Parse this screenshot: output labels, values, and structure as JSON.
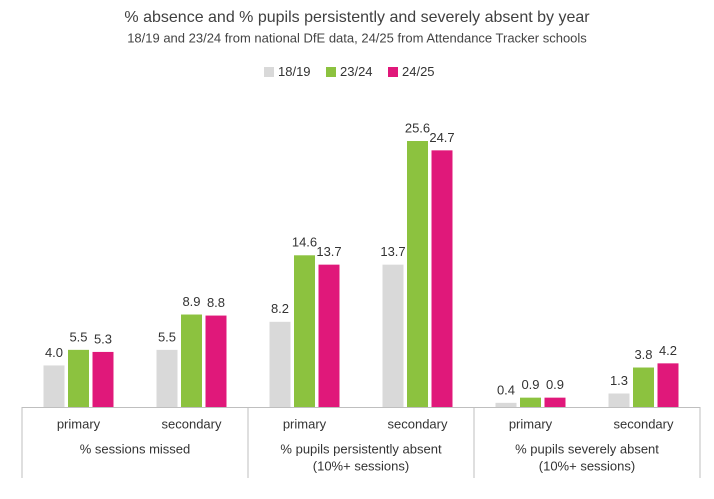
{
  "chart_data": {
    "type": "bar",
    "title": "% absence and % pupils persistently and severely absent by year",
    "subtitle": "18/19 and 23/24 from national DfE data, 24/25 from Attendance Tracker schools",
    "categories": [
      "primary",
      "secondary",
      "primary",
      "secondary",
      "primary",
      "secondary"
    ],
    "groups": [
      [
        "% sessions missed"
      ],
      [
        "% pupils persistently absent",
        "(10%+ sessions)"
      ],
      [
        "% pupils severely absent",
        "(10%+ sessions)"
      ]
    ],
    "series": [
      {
        "name": "18/19",
        "color": "#d9d9d9",
        "values": [
          4.0,
          5.5,
          8.2,
          13.7,
          0.4,
          1.3
        ],
        "value_labels": [
          "4.0",
          "5.5",
          "8.2",
          "13.7",
          "0.4",
          "1.3"
        ]
      },
      {
        "name": "23/24",
        "color": "#8cc23f",
        "values": [
          5.5,
          8.9,
          14.6,
          25.6,
          0.9,
          3.8
        ],
        "value_labels": [
          "5.5",
          "8.9",
          "14.6",
          "25.6",
          "0.9",
          "3.8"
        ]
      },
      {
        "name": "24/25",
        "color": "#e0187a",
        "values": [
          5.3,
          8.8,
          13.7,
          24.7,
          0.9,
          4.2
        ],
        "value_labels": [
          "5.3",
          "8.8",
          "13.7",
          "24.7",
          "0.9",
          "4.2"
        ]
      }
    ],
    "legend": "top"
  }
}
